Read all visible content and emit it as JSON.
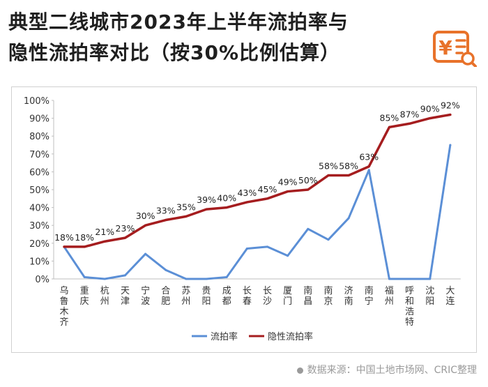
{
  "header": {
    "title_line1": "典型二线城市2023年上半年流拍率与",
    "title_line2": "隐性流拍率对比（按30%比例估算）"
  },
  "logo": {
    "icon": "yuan-document-icon",
    "glyph": "¥",
    "color": "#e8722a"
  },
  "source": {
    "text": "数据来源：中国土地市场网、CRIC整理"
  },
  "chart_data": {
    "type": "line",
    "title": "典型二线城市2023年上半年流拍率与隐性流拍率对比（按30%比例估算）",
    "categories": [
      "乌鲁木齐",
      "重庆",
      "杭州",
      "天津",
      "宁波",
      "合肥",
      "苏州",
      "贵阳",
      "成都",
      "长春",
      "长沙",
      "厦门",
      "南昌",
      "南京",
      "济南",
      "南宁",
      "福州",
      "呼和浩特",
      "沈阳",
      "大连"
    ],
    "y_ticks": [
      "0%",
      "10%",
      "20%",
      "30%",
      "40%",
      "50%",
      "60%",
      "70%",
      "80%",
      "90%",
      "100%"
    ],
    "ylim": [
      0,
      100
    ],
    "xlabel": "",
    "ylabel": "",
    "grid": false,
    "legend_position": "bottom",
    "series": [
      {
        "name": "流拍率",
        "color": "#5b8fd6",
        "values": [
          18,
          1,
          0,
          2,
          14,
          5,
          0,
          0,
          1,
          17,
          18,
          13,
          28,
          22,
          34,
          61,
          0,
          0,
          0,
          75
        ]
      },
      {
        "name": "隐性流拍率",
        "color": "#a51d1f",
        "values": [
          18,
          18,
          21,
          23,
          30,
          33,
          35,
          39,
          40,
          43,
          45,
          49,
          50,
          58,
          58,
          63,
          85,
          87,
          90,
          92
        ],
        "labels": [
          "18%",
          "18%",
          "21%",
          "23%",
          "30%",
          "33%",
          "35%",
          "39%",
          "40%",
          "43%",
          "45%",
          "49%",
          "50%",
          "58%",
          "58%",
          "63%",
          "85%",
          "87%",
          "90%",
          "92%"
        ]
      }
    ]
  }
}
